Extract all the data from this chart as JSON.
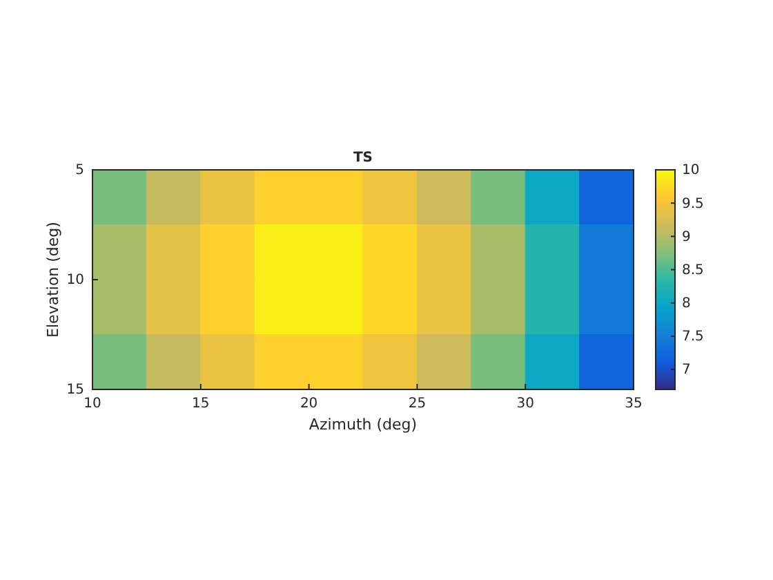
{
  "chart_data": {
    "type": "heatmap",
    "title": "TS",
    "xlabel": "Azimuth (deg)",
    "ylabel": "Elevation (deg)",
    "xlim": [
      10,
      35
    ],
    "xticks": [
      10,
      15,
      20,
      25,
      30,
      35
    ],
    "ylim": [
      15,
      5
    ],
    "yticks": [
      5,
      10,
      15
    ],
    "cells": [
      [
        8.7,
        9.1,
        9.4,
        9.65,
        9.65,
        9.45,
        9.15,
        8.7,
        8.0,
        7.2
      ],
      [
        8.95,
        9.35,
        9.65,
        9.9,
        9.9,
        9.7,
        9.4,
        8.95,
        8.25,
        7.45
      ],
      [
        8.95,
        9.35,
        9.65,
        9.9,
        9.9,
        9.7,
        9.4,
        8.95,
        8.25,
        7.45
      ],
      [
        8.7,
        9.1,
        9.4,
        9.65,
        9.65,
        9.45,
        9.15,
        8.7,
        8.0,
        7.2
      ]
    ],
    "clim": [
      6.7,
      10
    ],
    "cticks": [
      7,
      7.5,
      8,
      8.5,
      9,
      9.5,
      10
    ]
  }
}
